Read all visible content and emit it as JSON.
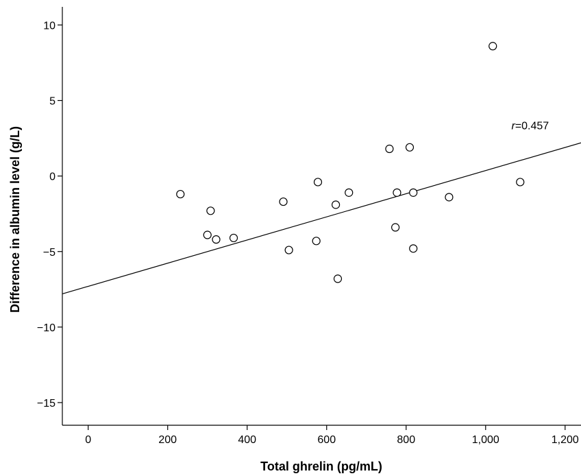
{
  "chart_data": {
    "type": "scatter",
    "xlabel": "Total ghrelin (pg/mL)",
    "ylabel": "Difference in albumin level (g/L)",
    "xlim": [
      -65,
      1240
    ],
    "ylim": [
      -16.5,
      11.2
    ],
    "x_ticks": [
      0,
      200,
      400,
      600,
      800,
      1000,
      1200
    ],
    "x_tick_labels": [
      "0",
      "200",
      "400",
      "600",
      "800",
      "1,000",
      "1,200"
    ],
    "y_ticks": [
      10,
      5,
      0,
      -5,
      -10,
      -15
    ],
    "y_tick_labels": [
      "10",
      "5",
      "0",
      "−5",
      "−10",
      "−15"
    ],
    "grid": false,
    "series": [
      {
        "points": [
          {
            "x": 232,
            "y": -1.2
          },
          {
            "x": 300,
            "y": -3.9
          },
          {
            "x": 308,
            "y": -2.3
          },
          {
            "x": 322,
            "y": -4.2
          },
          {
            "x": 366,
            "y": -4.1
          },
          {
            "x": 491,
            "y": -1.7
          },
          {
            "x": 505,
            "y": -4.9
          },
          {
            "x": 574,
            "y": -4.3
          },
          {
            "x": 578,
            "y": -0.4
          },
          {
            "x": 623,
            "y": -1.9
          },
          {
            "x": 628,
            "y": -6.8
          },
          {
            "x": 656,
            "y": -1.1
          },
          {
            "x": 758,
            "y": 1.8
          },
          {
            "x": 773,
            "y": -3.4
          },
          {
            "x": 777,
            "y": -1.1
          },
          {
            "x": 809,
            "y": 1.9
          },
          {
            "x": 818,
            "y": -4.8
          },
          {
            "x": 818,
            "y": -1.1
          },
          {
            "x": 908,
            "y": -1.4
          },
          {
            "x": 1018,
            "y": 8.6
          },
          {
            "x": 1087,
            "y": -0.4
          }
        ]
      }
    ],
    "fit_line": {
      "x": [
        -65,
        1240
      ],
      "y": [
        -7.8,
        2.2
      ]
    },
    "annotation": {
      "italic": "r",
      "rest": "=0.457",
      "x": 1065,
      "y": 3.1
    }
  }
}
